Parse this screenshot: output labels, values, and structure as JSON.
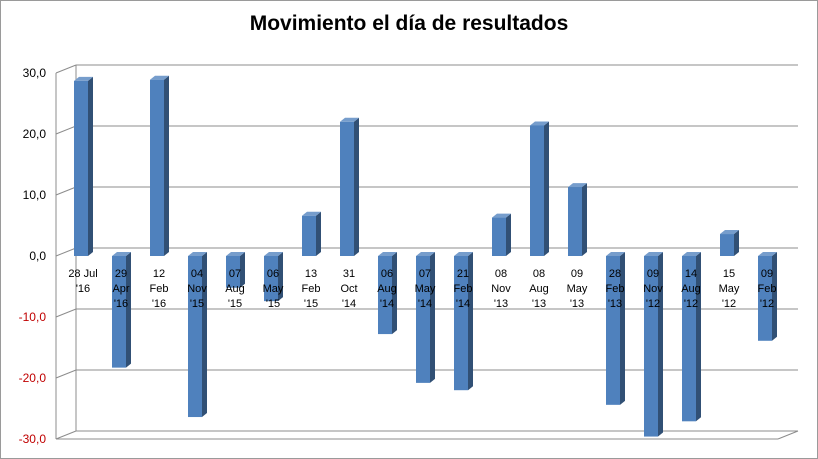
{
  "chart_data": {
    "type": "bar",
    "title": "Movimiento el día de resultados",
    "xlabel": "",
    "ylabel": "",
    "ylim": [
      -30,
      30
    ],
    "y_ticks": [
      "30,0",
      "20,0",
      "10,0",
      "0,0",
      "-10,0",
      "-20,0",
      "-30,0"
    ],
    "y_tick_values": [
      30,
      20,
      10,
      0,
      -10,
      -20,
      -30
    ],
    "negative_tick_color": "#c00000",
    "positive_tick_color": "#000000",
    "bar_color": "#4f81bd",
    "grid": true,
    "legend": "none",
    "categories": [
      [
        "28 Jul",
        "'16"
      ],
      [
        "29",
        "Apr",
        "'16"
      ],
      [
        "12",
        "Feb",
        "'16"
      ],
      [
        "04",
        "Nov",
        "'15"
      ],
      [
        "07",
        "Aug",
        "'15"
      ],
      [
        "06",
        "May",
        "'15"
      ],
      [
        "13",
        "Feb",
        "'15"
      ],
      [
        "31",
        "Oct",
        "'14"
      ],
      [
        "06",
        "Aug",
        "'14"
      ],
      [
        "07",
        "May",
        "'14"
      ],
      [
        "21",
        "Feb",
        "'14"
      ],
      [
        "08",
        "Nov",
        "'13"
      ],
      [
        "08",
        "Aug",
        "'13"
      ],
      [
        "09",
        "May",
        "'13"
      ],
      [
        "28",
        "Feb",
        "'13"
      ],
      [
        "09",
        "Nov",
        "'12"
      ],
      [
        "14",
        "Aug",
        "'12"
      ],
      [
        "15",
        "May",
        "'12"
      ],
      [
        "09",
        "Feb",
        "'12"
      ]
    ],
    "values": [
      28.7,
      -18.3,
      28.9,
      -26.4,
      -5.2,
      -7.4,
      6.6,
      22.0,
      -12.8,
      -20.8,
      -22.0,
      6.3,
      21.4,
      11.3,
      -24.4,
      -29.6,
      -27.1,
      3.6,
      -13.9
    ]
  }
}
